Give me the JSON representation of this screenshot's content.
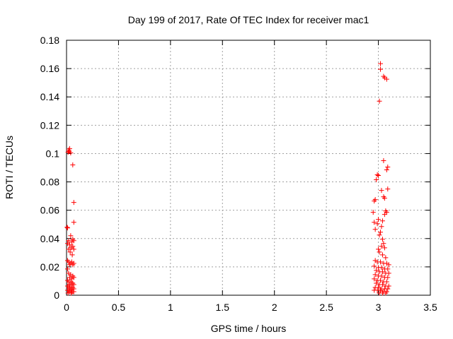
{
  "chart_data": {
    "type": "scatter",
    "title": "Day 199 of 2017, Rate Of TEC Index for receiver mac1",
    "xlabel": "GPS time / hours",
    "ylabel": "ROTI / TECUs",
    "xlim": [
      0,
      3.5
    ],
    "ylim": [
      0,
      0.18
    ],
    "xticks": [
      0,
      0.5,
      1,
      1.5,
      2,
      2.5,
      3,
      3.5
    ],
    "xtick_labels": [
      "0",
      "0.5",
      "1",
      "1.5",
      "2",
      "2.5",
      "3",
      "3.5"
    ],
    "yticks": [
      0,
      0.02,
      0.04,
      0.06,
      0.08,
      0.1,
      0.12,
      0.14,
      0.16,
      0.18
    ],
    "ytick_labels": [
      "0",
      "0.02",
      "0.04",
      "0.06",
      "0.08",
      "0.1",
      "0.12",
      "0.14",
      "0.16",
      "0.18"
    ],
    "grid": true,
    "marker": "plus",
    "color": "#ff0000",
    "series": [
      {
        "points": [
          [
            0.02,
            0.1025
          ],
          [
            0.03,
            0.1035
          ],
          [
            0.015,
            0.101
          ],
          [
            0.04,
            0.1005
          ],
          [
            0.025,
            0.1015
          ],
          [
            0.06,
            0.092
          ],
          [
            0.07,
            0.0655
          ],
          [
            0.07,
            0.0515
          ],
          [
            0.005,
            0.048
          ],
          [
            0.01,
            0.0475
          ],
          [
            0.04,
            0.042
          ],
          [
            0.06,
            0.0395
          ],
          [
            0.07,
            0.0385
          ],
          [
            0.02,
            0.0385
          ],
          [
            0.05,
            0.0375
          ],
          [
            0.01,
            0.0365
          ],
          [
            0.03,
            0.0355
          ],
          [
            0.06,
            0.0345
          ],
          [
            0.045,
            0.0335
          ],
          [
            0.02,
            0.0325
          ],
          [
            0.07,
            0.0325
          ],
          [
            0.035,
            0.0305
          ],
          [
            0.055,
            0.0285
          ],
          [
            0.01,
            0.0245
          ],
          [
            0.02,
            0.0235
          ],
          [
            0.05,
            0.0235
          ],
          [
            0.04,
            0.0225
          ],
          [
            0.07,
            0.0225
          ],
          [
            0.03,
            0.0215
          ],
          [
            0.06,
            0.0215
          ],
          [
            0.01,
            0.0185
          ],
          [
            0.02,
            0.0155
          ],
          [
            0.04,
            0.0145
          ],
          [
            0.06,
            0.0135
          ],
          [
            0.03,
            0.0125
          ],
          [
            0.07,
            0.0125
          ],
          [
            0.05,
            0.0115
          ],
          [
            0.01,
            0.0105
          ],
          [
            0.02,
            0.0095
          ],
          [
            0.04,
            0.0095
          ],
          [
            0.06,
            0.0085
          ],
          [
            0.03,
            0.0075
          ],
          [
            0.05,
            0.0075
          ],
          [
            0.07,
            0.0075
          ],
          [
            0.01,
            0.0065
          ],
          [
            0.02,
            0.0055
          ],
          [
            0.04,
            0.0055
          ],
          [
            0.06,
            0.0055
          ],
          [
            0.03,
            0.0045
          ],
          [
            0.05,
            0.0045
          ],
          [
            0.07,
            0.0045
          ],
          [
            0.01,
            0.0035
          ],
          [
            0.02,
            0.0035
          ],
          [
            0.04,
            0.0035
          ],
          [
            0.06,
            0.0025
          ],
          [
            0.03,
            0.0025
          ],
          [
            0.05,
            0.0025
          ],
          [
            0.07,
            0.0025
          ],
          [
            0.015,
            0.0015
          ],
          [
            0.045,
            0.0015
          ],
          [
            3.02,
            0.1635
          ],
          [
            3.02,
            0.1595
          ],
          [
            3.05,
            0.1545
          ],
          [
            3.06,
            0.1535
          ],
          [
            3.08,
            0.1525
          ],
          [
            3.01,
            0.137
          ],
          [
            3.05,
            0.095
          ],
          [
            3.09,
            0.0905
          ],
          [
            3.08,
            0.0885
          ],
          [
            2.99,
            0.085
          ],
          [
            3.0,
            0.0845
          ],
          [
            2.98,
            0.0815
          ],
          [
            3.05,
            0.0695
          ],
          [
            3.06,
            0.0685
          ],
          [
            2.96,
            0.0665
          ],
          [
            2.97,
            0.0675
          ],
          [
            3.03,
            0.074
          ],
          [
            3.09,
            0.075
          ],
          [
            3.07,
            0.0595
          ],
          [
            3.08,
            0.0585
          ],
          [
            3.06,
            0.057
          ],
          [
            2.95,
            0.0585
          ],
          [
            3.0,
            0.0535
          ],
          [
            3.04,
            0.0525
          ],
          [
            2.96,
            0.0515
          ],
          [
            2.99,
            0.0505
          ],
          [
            3.03,
            0.0485
          ],
          [
            2.97,
            0.0465
          ],
          [
            3.02,
            0.0445
          ],
          [
            3.01,
            0.0425
          ],
          [
            3.04,
            0.0395
          ],
          [
            3.05,
            0.0365
          ],
          [
            3.03,
            0.0345
          ],
          [
            3.06,
            0.0335
          ],
          [
            3.0,
            0.0325
          ],
          [
            3.01,
            0.0305
          ],
          [
            3.04,
            0.0285
          ],
          [
            3.07,
            0.0265
          ],
          [
            2.97,
            0.0245
          ],
          [
            2.99,
            0.0235
          ],
          [
            3.02,
            0.0235
          ],
          [
            3.05,
            0.0225
          ],
          [
            3.08,
            0.0225
          ],
          [
            3.1,
            0.0215
          ],
          [
            2.96,
            0.0205
          ],
          [
            3.0,
            0.0195
          ],
          [
            3.03,
            0.0195
          ],
          [
            3.06,
            0.0185
          ],
          [
            3.09,
            0.0185
          ],
          [
            2.98,
            0.0175
          ],
          [
            3.01,
            0.0165
          ],
          [
            3.04,
            0.0165
          ],
          [
            3.07,
            0.0155
          ],
          [
            3.1,
            0.0155
          ],
          [
            2.97,
            0.0145
          ],
          [
            3.0,
            0.0135
          ],
          [
            3.03,
            0.0135
          ],
          [
            3.06,
            0.0125
          ],
          [
            3.09,
            0.0125
          ],
          [
            2.96,
            0.0115
          ],
          [
            2.99,
            0.0105
          ],
          [
            3.02,
            0.0105
          ],
          [
            3.05,
            0.0095
          ],
          [
            3.08,
            0.0095
          ],
          [
            2.98,
            0.0085
          ],
          [
            3.01,
            0.0075
          ],
          [
            3.04,
            0.0075
          ],
          [
            3.07,
            0.0065
          ],
          [
            3.1,
            0.0065
          ],
          [
            2.97,
            0.0055
          ],
          [
            3.0,
            0.0055
          ],
          [
            3.03,
            0.0045
          ],
          [
            3.06,
            0.0045
          ],
          [
            3.09,
            0.0045
          ],
          [
            2.96,
            0.0035
          ],
          [
            2.99,
            0.0035
          ],
          [
            3.02,
            0.0035
          ],
          [
            3.05,
            0.0025
          ],
          [
            3.08,
            0.0025
          ],
          [
            3.01,
            0.0015
          ],
          [
            3.04,
            0.0015
          ],
          [
            3.07,
            0.0015
          ]
        ]
      }
    ]
  }
}
